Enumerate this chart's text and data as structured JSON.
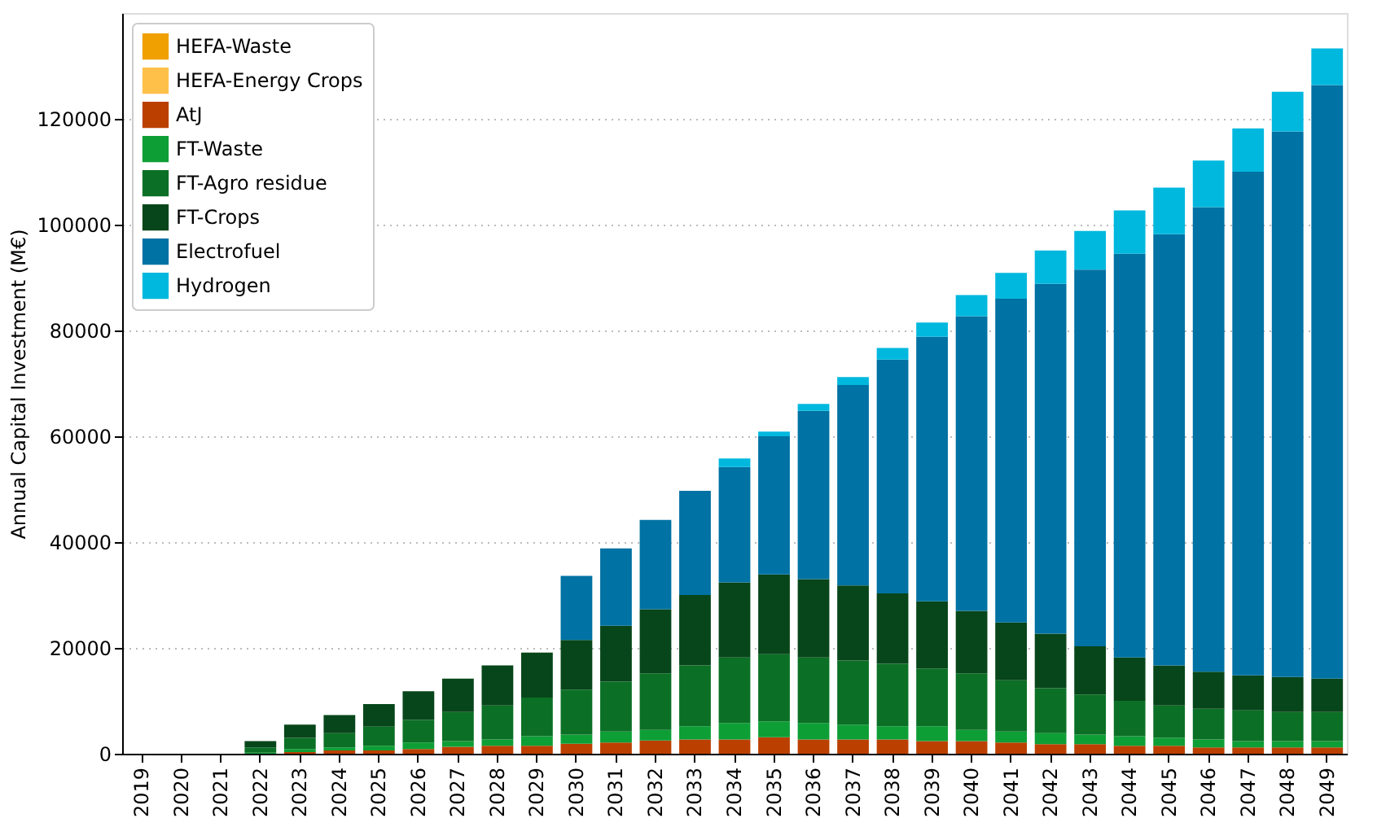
{
  "chart_data": {
    "type": "bar",
    "stacked": true,
    "ylabel": "Annual Capital Investment (M€)",
    "categories": [
      "2019",
      "2020",
      "2021",
      "2022",
      "2023",
      "2024",
      "2025",
      "2026",
      "2027",
      "2028",
      "2029",
      "2030",
      "2031",
      "2032",
      "2033",
      "2034",
      "2035",
      "2036",
      "2037",
      "2038",
      "2039",
      "2040",
      "2041",
      "2042",
      "2043",
      "2044",
      "2045",
      "2046",
      "2047",
      "2048",
      "2049"
    ],
    "ylim": [
      0,
      140000
    ],
    "yticks": [
      0,
      20000,
      40000,
      60000,
      80000,
      100000,
      120000
    ],
    "grid": "y",
    "legend": "top left",
    "series": [
      {
        "name": "HEFA-Waste",
        "color": "#f0a000",
        "values": [
          0,
          0,
          0,
          0,
          0,
          0,
          0,
          0,
          0,
          0,
          0,
          0,
          0,
          0,
          0,
          0,
          0,
          0,
          0,
          0,
          0,
          0,
          0,
          0,
          0,
          0,
          0,
          0,
          0,
          0,
          0
        ]
      },
      {
        "name": "HEFA-Energy Crops",
        "color": "#ffc04a",
        "values": [
          0,
          0,
          0,
          0,
          0,
          0,
          0,
          0,
          0,
          0,
          0,
          0,
          0,
          0,
          0,
          0,
          0,
          0,
          0,
          0,
          0,
          0,
          0,
          0,
          0,
          0,
          0,
          0,
          0,
          0,
          0
        ]
      },
      {
        "name": "AtJ",
        "color": "#bb4000",
        "values": [
          0,
          0,
          0,
          0,
          300,
          600,
          600,
          900,
          1300,
          1500,
          1500,
          1900,
          2100,
          2500,
          2700,
          2700,
          3100,
          2700,
          2700,
          2700,
          2400,
          2400,
          2100,
          1800,
          1800,
          1500,
          1500,
          1200,
          1200,
          1200,
          1200
        ]
      },
      {
        "name": "FT-Waste",
        "color": "#0e9e36",
        "values": [
          0,
          0,
          0,
          200,
          600,
          600,
          900,
          1200,
          1100,
          1200,
          1800,
          1700,
          2100,
          2000,
          2500,
          3100,
          3000,
          3100,
          2800,
          2500,
          2800,
          2100,
          2100,
          2100,
          1800,
          1800,
          1500,
          1500,
          1200,
          1200,
          1200
        ]
      },
      {
        "name": "FT-Agro residue",
        "color": "#0b7025",
        "values": [
          0,
          0,
          0,
          1000,
          2100,
          2700,
          3600,
          4300,
          5500,
          6400,
          7300,
          8500,
          9400,
          10700,
          11500,
          12400,
          12700,
          12400,
          12100,
          11800,
          10900,
          10700,
          9700,
          8500,
          7600,
          6700,
          6100,
          5800,
          5800,
          5500,
          5500
        ]
      },
      {
        "name": "FT-Crops",
        "color": "#07461a",
        "values": [
          0,
          0,
          0,
          1200,
          2500,
          3400,
          4300,
          5400,
          6300,
          7600,
          8500,
          9400,
          10600,
          12100,
          13300,
          14200,
          15100,
          14800,
          14200,
          13300,
          12700,
          11800,
          10900,
          10300,
          9100,
          8200,
          7600,
          7000,
          6600,
          6600,
          6300
        ]
      },
      {
        "name": "Electrofuel",
        "color": "#0072a3",
        "values": [
          0,
          0,
          0,
          0,
          0,
          0,
          0,
          0,
          0,
          0,
          0,
          12100,
          14600,
          16900,
          19700,
          21800,
          26100,
          31800,
          37900,
          44200,
          50000,
          55700,
          61200,
          66100,
          71200,
          76300,
          81500,
          87800,
          95200,
          103100,
          112200
        ]
      },
      {
        "name": "Hydrogen",
        "color": "#00b8de",
        "values": [
          0,
          0,
          0,
          0,
          0,
          0,
          0,
          0,
          0,
          0,
          0,
          0,
          0,
          0,
          0,
          1600,
          900,
          1300,
          1500,
          2200,
          2700,
          4000,
          4900,
          6300,
          7300,
          8200,
          8800,
          8800,
          8200,
          7500,
          6900
        ]
      }
    ]
  }
}
